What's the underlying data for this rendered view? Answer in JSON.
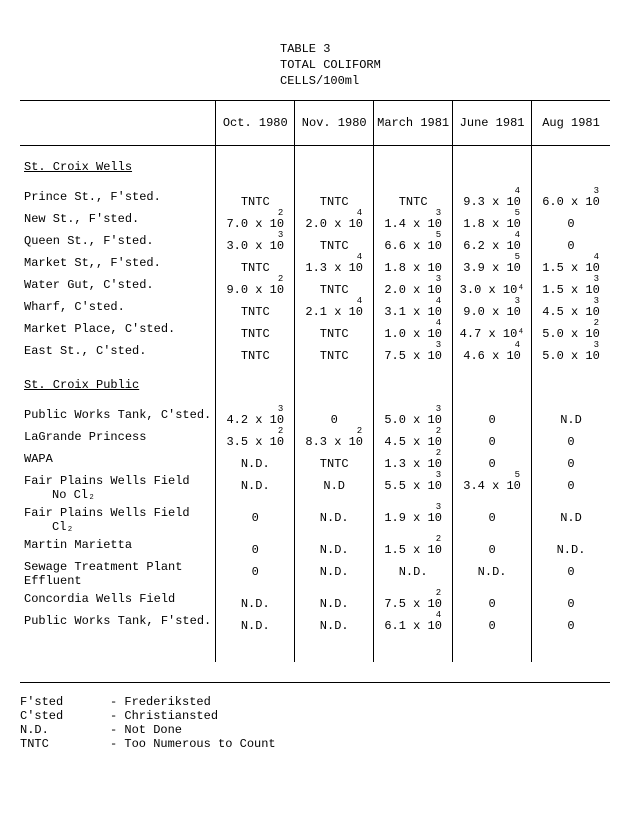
{
  "title": {
    "line1": "TABLE 3",
    "line2": "TOTAL COLIFORM",
    "line3": "CELLS/100ml"
  },
  "columns": [
    "Oct. 1980",
    "Nov. 1980",
    "March 1981",
    "June 1981",
    "Aug 1981"
  ],
  "sections": [
    {
      "heading": "St. Croix Wells",
      "rows": [
        {
          "label": "Prince St., F'sted.",
          "cells": [
            {
              "v": "TNTC"
            },
            {
              "v": "TNTC"
            },
            {
              "v": "TNTC"
            },
            {
              "v": "9.3 x 10",
              "sup": "4"
            },
            {
              "v": "6.0 x 10",
              "sup": "3"
            }
          ]
        },
        {
          "label": "New St., F'sted.",
          "cells": [
            {
              "v": "7.0 x 10",
              "sup": "2"
            },
            {
              "v": "2.0 x 10",
              "sup": "4"
            },
            {
              "v": "1.4 x 10",
              "sup": "3"
            },
            {
              "v": "1.8 x 10",
              "sup": "5"
            },
            {
              "v": "0"
            }
          ]
        },
        {
          "label": "Queen St., F'sted.",
          "cells": [
            {
              "v": "3.0 x 10",
              "sup": "3"
            },
            {
              "v": "TNTC"
            },
            {
              "v": "6.6 x 10",
              "sup": "5"
            },
            {
              "v": "6.2 x 10",
              "sup": "4"
            },
            {
              "v": "0"
            }
          ]
        },
        {
          "label": "Market St,, F'sted.",
          "cells": [
            {
              "v": "TNTC"
            },
            {
              "v": "1.3 x 10",
              "sup": "4"
            },
            {
              "v": "1.8 x 10"
            },
            {
              "v": "3.9 x 10",
              "sup": "5"
            },
            {
              "v": "1.5 x 10",
              "sup": "4"
            }
          ]
        },
        {
          "label": "Water Gut, C'sted.",
          "cells": [
            {
              "v": "9.0 x 10",
              "sup": "2"
            },
            {
              "v": "TNTC"
            },
            {
              "v": "2.0 x 10",
              "sup": "3"
            },
            {
              "v": "3.0 x 10⁴"
            },
            {
              "v": "1.5 x 10",
              "sup": "3"
            }
          ]
        },
        {
          "label": "Wharf, C'sted.",
          "cells": [
            {
              "v": "TNTC"
            },
            {
              "v": "2.1 x 10",
              "sup": "4"
            },
            {
              "v": "3.1 x 10",
              "sup": "4"
            },
            {
              "v": "9.0 x 10",
              "sup": "3"
            },
            {
              "v": "4.5 x 10",
              "sup": "3"
            }
          ]
        },
        {
          "label": "Market Place, C'sted.",
          "cells": [
            {
              "v": "TNTC"
            },
            {
              "v": "TNTC"
            },
            {
              "v": "1.0 x 10",
              "sup": "4"
            },
            {
              "v": "4.7 x 10⁴"
            },
            {
              "v": "5.0 x 10",
              "sup": "2"
            }
          ]
        },
        {
          "label": "East St., C'sted.",
          "cells": [
            {
              "v": "TNTC"
            },
            {
              "v": "TNTC"
            },
            {
              "v": "7.5 x 10",
              "sup": "3"
            },
            {
              "v": "4.6 x 10",
              "sup": "4"
            },
            {
              "v": "5.0 x 10",
              "sup": "3"
            }
          ]
        }
      ]
    },
    {
      "heading": "St. Croix Public",
      "rows": [
        {
          "label": "Public Works Tank, C'sted.",
          "cells": [
            {
              "v": "4.2 x 10",
              "sup": "3"
            },
            {
              "v": "0"
            },
            {
              "v": "5.0 x 10",
              "sup": "3"
            },
            {
              "v": "0"
            },
            {
              "v": "N.D"
            }
          ]
        },
        {
          "label": "LaGrande Princess",
          "cells": [
            {
              "v": "3.5 x 10",
              "sup": "2"
            },
            {
              "v": "8.3 x 10",
              "sup": "2"
            },
            {
              "v": "4.5 x 10",
              "sup": "2"
            },
            {
              "v": "0"
            },
            {
              "v": "0"
            }
          ]
        },
        {
          "label": "WAPA",
          "cells": [
            {
              "v": "N.D."
            },
            {
              "v": "TNTC"
            },
            {
              "v": "1.3 x 10",
              "sup": "2"
            },
            {
              "v": "0"
            },
            {
              "v": "0"
            }
          ]
        },
        {
          "label": "Fair Plains Wells Field",
          "sub": "No Cl₂",
          "cells": [
            {
              "v": "N.D."
            },
            {
              "v": "N.D"
            },
            {
              "v": "5.5 x 10",
              "sup": "3"
            },
            {
              "v": "3.4 x 10",
              "sup": "5"
            },
            {
              "v": "0"
            }
          ]
        },
        {
          "label": "Fair Plains Wells Field",
          "sub": "Cl₂",
          "cells": [
            {
              "v": "0"
            },
            {
              "v": "N.D."
            },
            {
              "v": "1.9 x 10",
              "sup": "3"
            },
            {
              "v": "0"
            },
            {
              "v": "N.D"
            }
          ]
        },
        {
          "label": "Martin Marietta",
          "cells": [
            {
              "v": "0"
            },
            {
              "v": "N.D."
            },
            {
              "v": "1.5 x 10",
              "sup": "2"
            },
            {
              "v": "0"
            },
            {
              "v": "N.D."
            }
          ]
        },
        {
          "label": "Sewage Treatment Plant Effluent",
          "cells": [
            {
              "v": "0"
            },
            {
              "v": "N.D."
            },
            {
              "v": "N.D."
            },
            {
              "v": "N.D."
            },
            {
              "v": "0"
            }
          ]
        },
        {
          "label": "Concordia Wells Field",
          "cells": [
            {
              "v": "N.D."
            },
            {
              "v": "N.D."
            },
            {
              "v": "7.5 x 10",
              "sup": "2"
            },
            {
              "v": "0"
            },
            {
              "v": "0"
            }
          ]
        },
        {
          "label": "Public Works Tank, F'sted.",
          "cells": [
            {
              "v": "N.D."
            },
            {
              "v": "N.D."
            },
            {
              "v": "6.1 x 10",
              "sup": "4"
            },
            {
              "v": "0"
            },
            {
              "v": "0"
            }
          ]
        }
      ]
    }
  ],
  "legend": [
    {
      "k": "F'sted",
      "v": "- Frederiksted"
    },
    {
      "k": "C'sted",
      "v": "- Christiansted"
    },
    {
      "k": "N.D.",
      "v": "- Not Done"
    },
    {
      "k": "TNTC",
      "v": "- Too Numerous to Count"
    }
  ]
}
